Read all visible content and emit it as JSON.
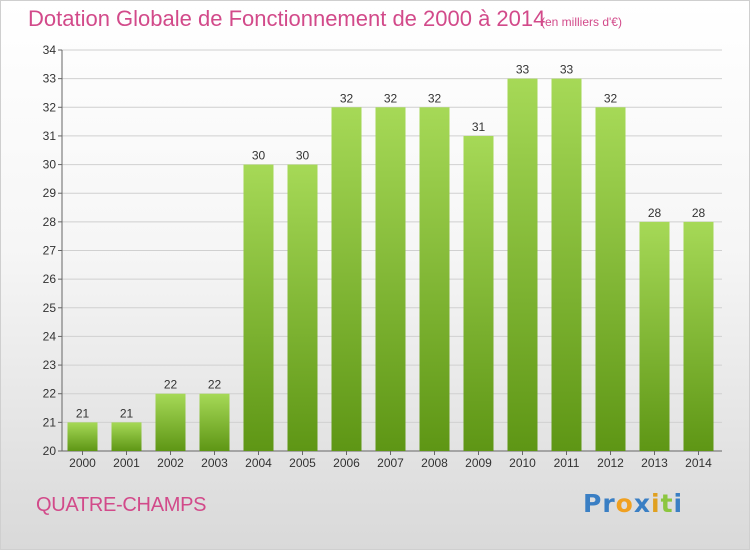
{
  "header": {
    "title": "Dotation Globale de Fonctionnement de 2000 à 2014",
    "subtitle": "(en milliers d'€)"
  },
  "footer": {
    "commune": "QUATRE-CHAMPS",
    "logo_letters": [
      {
        "ch": "P",
        "color": "#3a7fc4"
      },
      {
        "ch": "r",
        "color": "#3a7fc4"
      },
      {
        "ch": "o",
        "color": "#f0a020"
      },
      {
        "ch": "x",
        "color": "#3a7fc4"
      },
      {
        "ch": "i",
        "color": "#e0a020"
      },
      {
        "ch": "t",
        "color": "#8cc63f"
      },
      {
        "ch": "i",
        "color": "#3a7fc4"
      }
    ]
  },
  "colors": {
    "bar_light": "#a6d957",
    "bar_dark": "#5e9615",
    "title": "#d24a8a",
    "grid": "#d0d0d0",
    "axis_text": "#333333"
  },
  "chart_data": {
    "type": "bar",
    "title": "Dotation Globale de Fonctionnement de 2000 à 2014",
    "subtitle": "(en milliers d'€)",
    "categories": [
      "2000",
      "2001",
      "2002",
      "2003",
      "2004",
      "2005",
      "2006",
      "2007",
      "2008",
      "2009",
      "2010",
      "2011",
      "2012",
      "2013",
      "2014"
    ],
    "values": [
      21,
      21,
      22,
      22,
      30,
      30,
      32,
      32,
      32,
      31,
      33,
      33,
      32,
      28,
      28
    ],
    "data_labels": [
      "21",
      "21",
      "22",
      "22",
      "30",
      "30",
      "32",
      "32",
      "32",
      "31",
      "33",
      "33",
      "32",
      "28",
      "28"
    ],
    "ylim": [
      20,
      34
    ],
    "yticks": [
      "20",
      "21",
      "22",
      "23",
      "24",
      "25",
      "26",
      "27",
      "28",
      "29",
      "30",
      "31",
      "32",
      "33",
      "34"
    ],
    "grid": true,
    "xlabel": "",
    "ylabel": ""
  }
}
